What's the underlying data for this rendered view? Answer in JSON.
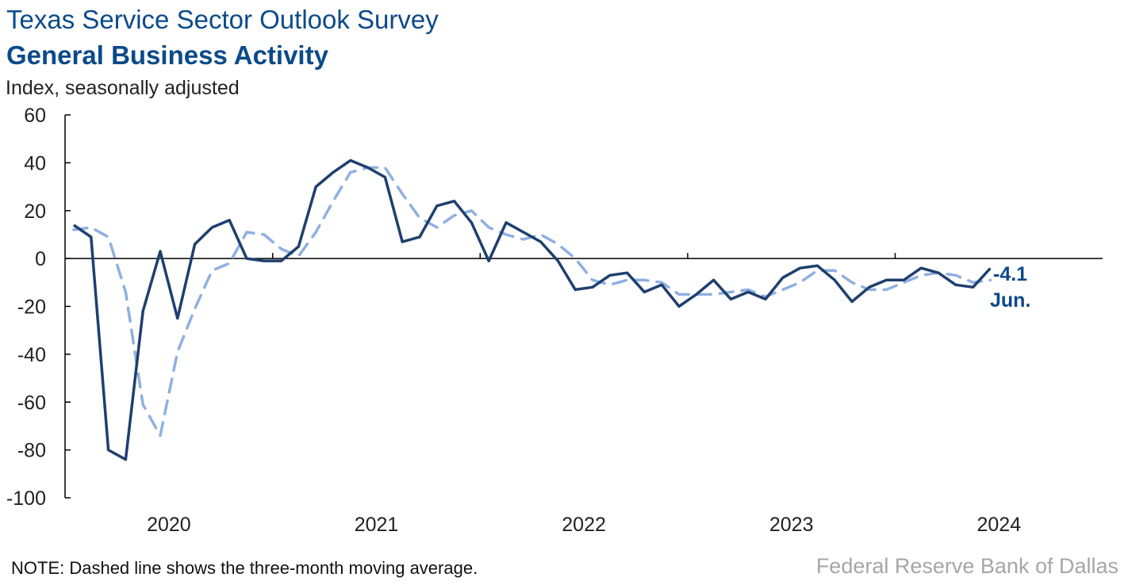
{
  "header": {
    "title": "Texas Service Sector Outlook Survey",
    "subtitle": "General Business Activity",
    "ylabel": "Index, seasonally adjusted"
  },
  "footer": {
    "note": "NOTE: Dashed line shows the three-month moving average.",
    "source": "Federal Reserve Bank of Dallas"
  },
  "colors": {
    "index": "#1f3f6e",
    "moving_average": "#8fb0e0",
    "text_accent": "#0b4a8b"
  },
  "chart_data": {
    "type": "line",
    "title": "General Business Activity",
    "ylabel": "Index, seasonally adjusted",
    "ylim": [
      -100,
      60
    ],
    "yticks": [
      60,
      40,
      20,
      0,
      -20,
      -40,
      -60,
      -80,
      -100
    ],
    "x_start": "2020-01",
    "x_end": "2024-06",
    "xtick_labels": [
      "2020",
      "2021",
      "2022",
      "2023",
      "2024"
    ],
    "annotation": {
      "value": "-4.1",
      "label": "Jun."
    },
    "series": [
      {
        "name": "Index",
        "style": "solid",
        "values": [
          14,
          9,
          -80,
          -84,
          -22,
          3,
          -25,
          6,
          13,
          16,
          0,
          -1,
          -1,
          5,
          30,
          36,
          41,
          38,
          34,
          7,
          9,
          22,
          24,
          15,
          -1,
          15,
          11,
          7,
          -1,
          -13,
          -12,
          -7,
          -6,
          -14,
          -11,
          -20,
          -15,
          -9,
          -17,
          -14,
          -17,
          -8,
          -4,
          -3,
          -9,
          -18,
          -12,
          -9,
          -9,
          -4,
          -6,
          -11,
          -12,
          -4.1
        ]
      },
      {
        "name": "Three-month moving average",
        "style": "dashed",
        "values": [
          12,
          13,
          9,
          -14,
          -61,
          -74,
          -39,
          -21,
          -5,
          -2,
          11,
          10,
          4,
          1,
          11,
          24,
          36,
          38,
          38,
          27,
          17,
          13,
          18,
          20,
          13,
          10,
          8,
          10,
          6,
          0,
          -9,
          -11,
          -9,
          -9,
          -10,
          -15,
          -15,
          -15,
          -14,
          -13,
          -16,
          -13,
          -10,
          -5,
          -5,
          -10,
          -13,
          -13,
          -10,
          -7,
          -6,
          -7,
          -10,
          -9
        ]
      }
    ]
  }
}
